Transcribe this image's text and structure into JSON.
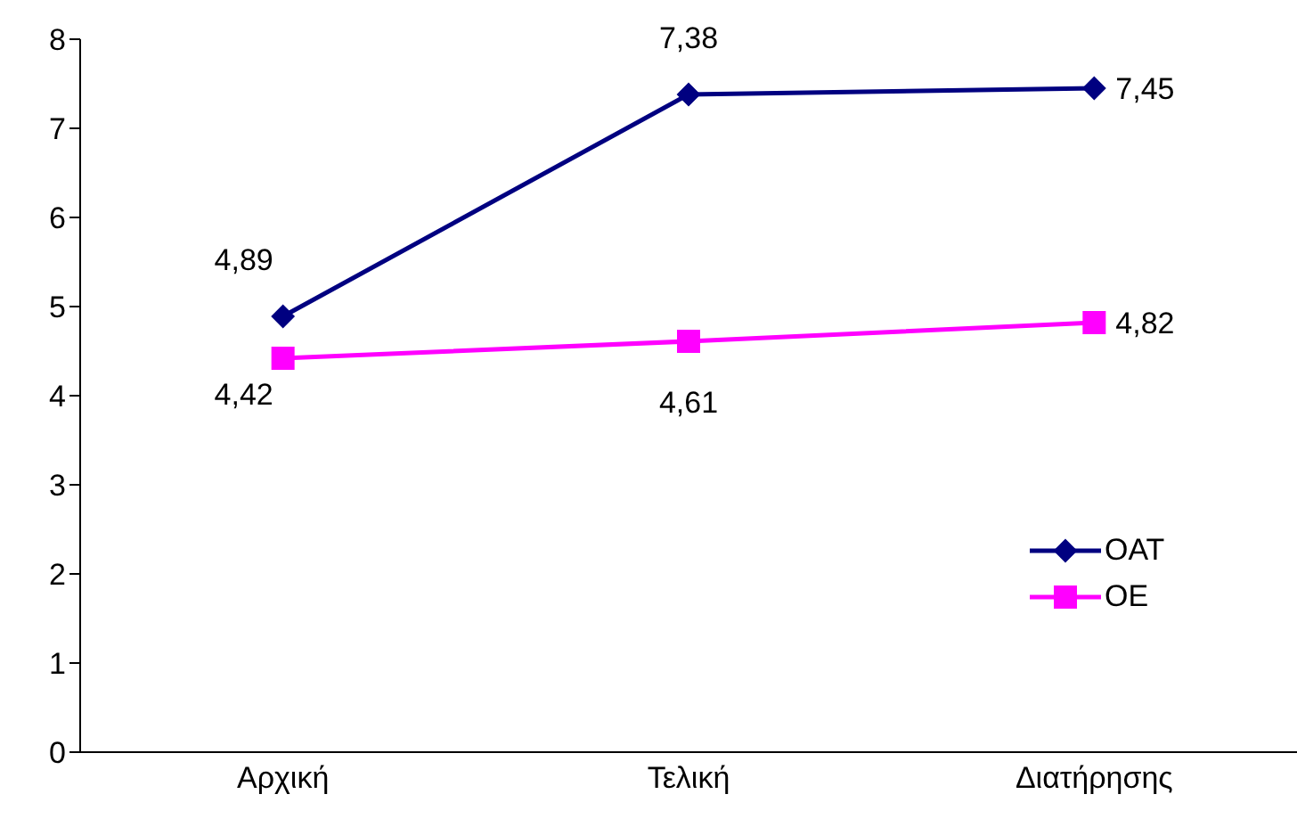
{
  "chart_data": {
    "type": "line",
    "categories": [
      "Αρχική",
      "Τελική",
      "Διατήρησης"
    ],
    "series": [
      {
        "name": "OAT",
        "color": "#000080",
        "values": [
          4.89,
          7.38,
          7.45
        ],
        "marker": "diamond",
        "value_labels": [
          "4,89",
          "7,38",
          "7,45"
        ]
      },
      {
        "name": "OE",
        "color": "#ff00ff",
        "values": [
          4.42,
          4.61,
          4.82
        ],
        "marker": "square",
        "value_labels": [
          "4,42",
          "4,61",
          "4,82"
        ]
      }
    ],
    "ylim": [
      0,
      8
    ],
    "yticks": [
      0,
      1,
      2,
      3,
      4,
      5,
      6,
      7,
      8
    ],
    "legend": "bottom right"
  }
}
